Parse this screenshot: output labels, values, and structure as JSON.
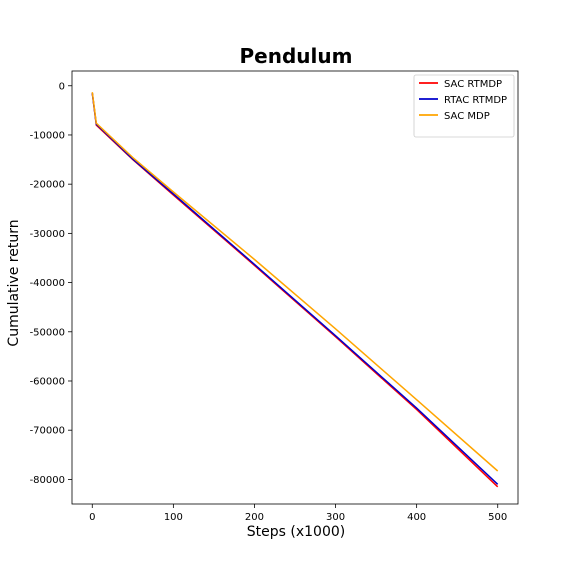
{
  "chart_data": {
    "type": "line",
    "title": "Pendulum",
    "xlabel": "Steps (x1000)",
    "ylabel": "Cumulative return",
    "xlim": [
      -25,
      525
    ],
    "ylim": [
      -85000,
      3000
    ],
    "xticks": [
      0,
      100,
      200,
      300,
      400,
      500
    ],
    "yticks": [
      0,
      -10000,
      -20000,
      -30000,
      -40000,
      -50000,
      -60000,
      -70000,
      -80000
    ],
    "grid": false,
    "legend_position": "top-right",
    "series": [
      {
        "name": "SAC RTMDP",
        "color": "#ff0000",
        "x": [
          0,
          5,
          50,
          100,
          200,
          300,
          400,
          500
        ],
        "y": [
          -1500,
          -8000,
          -15000,
          -22200,
          -36500,
          -51000,
          -65800,
          -81500
        ]
      },
      {
        "name": "RTAC RTMDP",
        "color": "#0000cc",
        "x": [
          0,
          5,
          50,
          100,
          200,
          300,
          400,
          500
        ],
        "y": [
          -1500,
          -7800,
          -14900,
          -22000,
          -36300,
          -50800,
          -65500,
          -81000
        ]
      },
      {
        "name": "SAC MDP",
        "color": "#ffa500",
        "x": [
          0,
          5,
          50,
          100,
          200,
          300,
          400,
          500
        ],
        "y": [
          -1300,
          -7600,
          -14600,
          -21600,
          -35300,
          -49400,
          -63800,
          -78300
        ]
      }
    ]
  }
}
